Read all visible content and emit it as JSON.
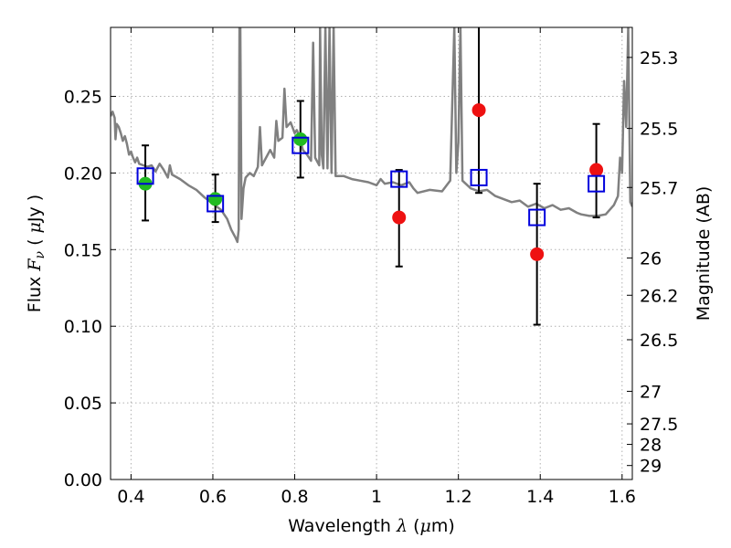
{
  "chart_data": {
    "type": "scatter",
    "xlabel": {
      "prefix": "Wavelength ",
      "symbol": "λ",
      "unit_open": " (",
      "unit_mu": "μ",
      "unit_close": "m)"
    },
    "ylabel": {
      "prefix": "Flux ",
      "symbol": "F",
      "subscript": "ν",
      "unit_open": " ( ",
      "unit_mu": "μ",
      "unit_close": "Jy )"
    },
    "y2label": "Magnitude (AB)",
    "xlim": [
      0.35,
      1.625
    ],
    "ylim": [
      0.0,
      0.295
    ],
    "grid": true,
    "xticks": [
      {
        "value": 0.4,
        "label": "0.4"
      },
      {
        "value": 0.6,
        "label": "0.6"
      },
      {
        "value": 0.8,
        "label": "0.8"
      },
      {
        "value": 1.0,
        "label": "1"
      },
      {
        "value": 1.2,
        "label": "1.2"
      },
      {
        "value": 1.4,
        "label": "1.4"
      },
      {
        "value": 1.6,
        "label": "1.6"
      }
    ],
    "yticks": [
      {
        "value": 0.0,
        "label": "0.00"
      },
      {
        "value": 0.05,
        "label": "0.05"
      },
      {
        "value": 0.1,
        "label": "0.10"
      },
      {
        "value": 0.15,
        "label": "0.15"
      },
      {
        "value": 0.2,
        "label": "0.20"
      },
      {
        "value": 0.25,
        "label": "0.25"
      }
    ],
    "y2ticks": [
      {
        "value": 25.3,
        "label": "25.3"
      },
      {
        "value": 25.5,
        "label": "25.5"
      },
      {
        "value": 25.7,
        "label": "25.7"
      },
      {
        "value": 26.0,
        "label": "26"
      },
      {
        "value": 26.2,
        "label": "26.2"
      },
      {
        "value": 26.5,
        "label": "26.5"
      },
      {
        "value": 27.0,
        "label": "27"
      },
      {
        "value": 27.5,
        "label": "27.5"
      },
      {
        "value": 28.0,
        "label": "28"
      },
      {
        "value": 29.0,
        "label": "29"
      }
    ],
    "observed_points": [
      {
        "x": 0.435,
        "y": 0.193,
        "yerr_low": 0.169,
        "yerr_high": 0.218,
        "color": "#22bb22"
      },
      {
        "x": 0.606,
        "y": 0.183,
        "yerr_low": 0.168,
        "yerr_high": 0.199,
        "color": "#22bb22"
      },
      {
        "x": 0.814,
        "y": 0.222,
        "yerr_low": 0.197,
        "yerr_high": 0.247,
        "color": "#22bb22"
      },
      {
        "x": 1.055,
        "y": 0.171,
        "yerr_low": 0.139,
        "yerr_high": 0.202,
        "color": "#ee1111"
      },
      {
        "x": 1.25,
        "y": 0.241,
        "yerr_low": 0.187,
        "yerr_high": 0.296,
        "color": "#ee1111"
      },
      {
        "x": 1.392,
        "y": 0.147,
        "yerr_low": 0.101,
        "yerr_high": 0.193,
        "color": "#ee1111"
      },
      {
        "x": 1.537,
        "y": 0.202,
        "yerr_low": 0.171,
        "yerr_high": 0.232,
        "color": "#ee1111"
      }
    ],
    "model_points": [
      {
        "x": 0.435,
        "y": 0.198
      },
      {
        "x": 0.606,
        "y": 0.18
      },
      {
        "x": 0.814,
        "y": 0.218
      },
      {
        "x": 1.055,
        "y": 0.196
      },
      {
        "x": 1.25,
        "y": 0.197
      },
      {
        "x": 1.392,
        "y": 0.171
      },
      {
        "x": 1.537,
        "y": 0.193
      }
    ],
    "model_spectrum": [
      [
        0.35,
        0.237
      ],
      [
        0.355,
        0.24
      ],
      [
        0.36,
        0.236
      ],
      [
        0.362,
        0.222
      ],
      [
        0.365,
        0.232
      ],
      [
        0.37,
        0.23
      ],
      [
        0.375,
        0.226
      ],
      [
        0.38,
        0.221
      ],
      [
        0.385,
        0.224
      ],
      [
        0.39,
        0.219
      ],
      [
        0.395,
        0.212
      ],
      [
        0.4,
        0.214
      ],
      [
        0.405,
        0.21
      ],
      [
        0.41,
        0.207
      ],
      [
        0.415,
        0.21
      ],
      [
        0.42,
        0.206
      ],
      [
        0.43,
        0.205
      ],
      [
        0.44,
        0.204
      ],
      [
        0.45,
        0.205
      ],
      [
        0.46,
        0.201
      ],
      [
        0.47,
        0.206
      ],
      [
        0.48,
        0.202
      ],
      [
        0.49,
        0.197
      ],
      [
        0.495,
        0.205
      ],
      [
        0.5,
        0.199
      ],
      [
        0.52,
        0.196
      ],
      [
        0.54,
        0.192
      ],
      [
        0.56,
        0.189
      ],
      [
        0.58,
        0.184
      ],
      [
        0.6,
        0.18
      ],
      [
        0.62,
        0.176
      ],
      [
        0.635,
        0.17
      ],
      [
        0.645,
        0.163
      ],
      [
        0.655,
        0.158
      ],
      [
        0.66,
        0.155
      ],
      [
        0.663,
        0.163
      ],
      [
        0.665,
        0.295
      ],
      [
        0.667,
        0.295
      ],
      [
        0.67,
        0.17
      ],
      [
        0.675,
        0.19
      ],
      [
        0.68,
        0.197
      ],
      [
        0.69,
        0.2
      ],
      [
        0.7,
        0.198
      ],
      [
        0.71,
        0.204
      ],
      [
        0.715,
        0.23
      ],
      [
        0.72,
        0.205
      ],
      [
        0.73,
        0.21
      ],
      [
        0.74,
        0.215
      ],
      [
        0.75,
        0.21
      ],
      [
        0.755,
        0.234
      ],
      [
        0.76,
        0.221
      ],
      [
        0.77,
        0.223
      ],
      [
        0.775,
        0.255
      ],
      [
        0.78,
        0.23
      ],
      [
        0.79,
        0.233
      ],
      [
        0.8,
        0.226
      ],
      [
        0.805,
        0.228
      ],
      [
        0.81,
        0.225
      ],
      [
        0.82,
        0.215
      ],
      [
        0.83,
        0.212
      ],
      [
        0.84,
        0.208
      ],
      [
        0.845,
        0.285
      ],
      [
        0.85,
        0.21
      ],
      [
        0.86,
        0.205
      ],
      [
        0.862,
        0.295
      ],
      [
        0.866,
        0.212
      ],
      [
        0.87,
        0.203
      ],
      [
        0.875,
        0.295
      ],
      [
        0.88,
        0.203
      ],
      [
        0.885,
        0.295
      ],
      [
        0.89,
        0.2
      ],
      [
        0.895,
        0.295
      ],
      [
        0.9,
        0.198
      ],
      [
        0.92,
        0.198
      ],
      [
        0.94,
        0.196
      ],
      [
        0.96,
        0.195
      ],
      [
        0.98,
        0.194
      ],
      [
        1.0,
        0.192
      ],
      [
        1.01,
        0.196
      ],
      [
        1.02,
        0.193
      ],
      [
        1.04,
        0.194
      ],
      [
        1.06,
        0.192
      ],
      [
        1.08,
        0.194
      ],
      [
        1.09,
        0.19
      ],
      [
        1.1,
        0.187
      ],
      [
        1.13,
        0.189
      ],
      [
        1.16,
        0.188
      ],
      [
        1.18,
        0.195
      ],
      [
        1.19,
        0.295
      ],
      [
        1.195,
        0.2
      ],
      [
        1.2,
        0.22
      ],
      [
        1.205,
        0.295
      ],
      [
        1.21,
        0.195
      ],
      [
        1.23,
        0.19
      ],
      [
        1.25,
        0.188
      ],
      [
        1.27,
        0.189
      ],
      [
        1.29,
        0.185
      ],
      [
        1.31,
        0.183
      ],
      [
        1.33,
        0.181
      ],
      [
        1.35,
        0.182
      ],
      [
        1.37,
        0.178
      ],
      [
        1.39,
        0.18
      ],
      [
        1.41,
        0.177
      ],
      [
        1.43,
        0.179
      ],
      [
        1.45,
        0.176
      ],
      [
        1.47,
        0.177
      ],
      [
        1.49,
        0.174
      ],
      [
        1.5,
        0.173
      ],
      [
        1.52,
        0.172
      ],
      [
        1.54,
        0.172
      ],
      [
        1.56,
        0.173
      ],
      [
        1.58,
        0.179
      ],
      [
        1.59,
        0.185
      ],
      [
        1.595,
        0.21
      ],
      [
        1.6,
        0.2
      ],
      [
        1.605,
        0.26
      ],
      [
        1.61,
        0.23
      ],
      [
        1.615,
        0.295
      ],
      [
        1.62,
        0.181
      ],
      [
        1.625,
        0.178
      ]
    ],
    "colors": {
      "spectrum": "#808080",
      "model_marker": "#0000dd",
      "errorbar": "#000000",
      "grid": "#b0b0b0"
    }
  }
}
